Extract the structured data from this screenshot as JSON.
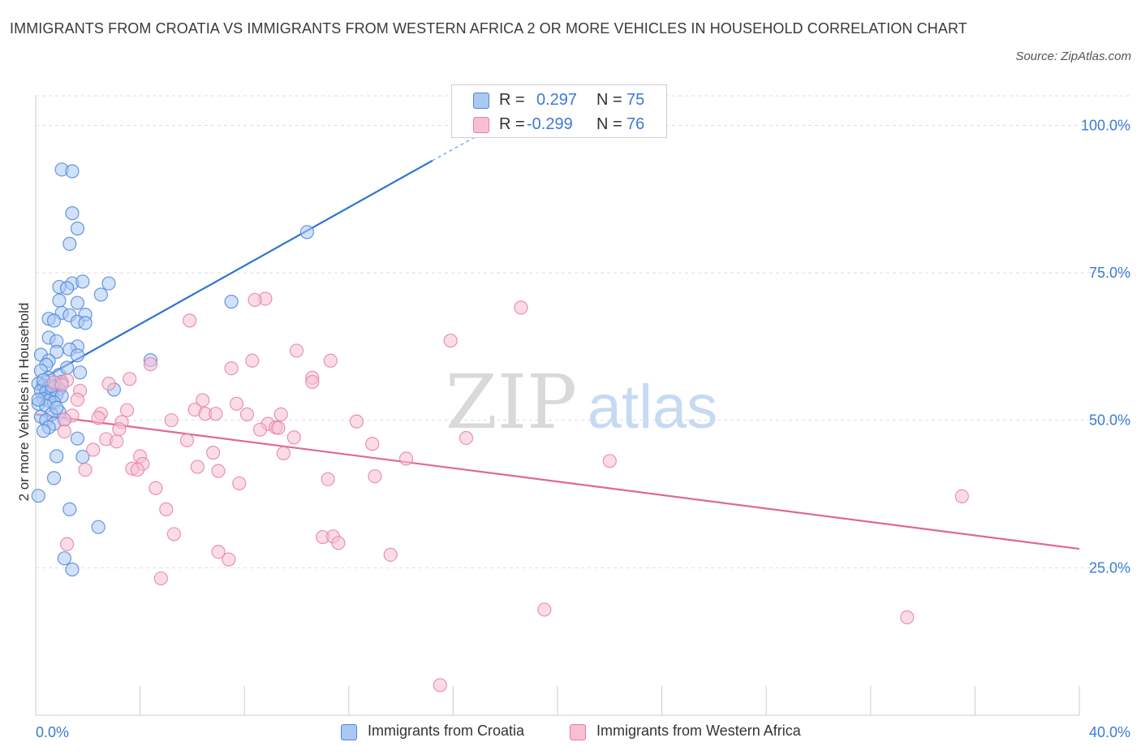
{
  "title": "IMMIGRANTS FROM CROATIA VS IMMIGRANTS FROM WESTERN AFRICA 2 OR MORE VEHICLES IN HOUSEHOLD CORRELATION CHART",
  "source": "Source: ZipAtlas.com",
  "watermark": {
    "zip": "ZIP",
    "atlas": "atlas"
  },
  "legend": {
    "r_label": "R =",
    "n_label": "N =",
    "croatia": {
      "r": "0.297",
      "n": "75"
    },
    "wafrica": {
      "r": "-0.299",
      "n": "76"
    }
  },
  "colors": {
    "croatia_fill": "#a9c8f2",
    "croatia_stroke": "#4f86d9",
    "croatia_line": "#2f74d0",
    "wafrica_fill": "#f6bfd2",
    "wafrica_stroke": "#e77fa4",
    "wafrica_line": "#e0679a",
    "axis_text": "#3a7bd5",
    "grid": "#dddddd"
  },
  "chart_data": {
    "type": "scatter",
    "xlabel": "",
    "ylabel": "2 or more Vehicles in Household",
    "xlim": [
      0,
      40
    ],
    "ylim": [
      0,
      105
    ],
    "x_tick_labels": [
      "0.0%",
      "40.0%"
    ],
    "y_ticks": [
      25,
      50,
      75,
      100
    ],
    "y_tick_labels": [
      "25.0%",
      "50.0%",
      "75.0%",
      "100.0%"
    ],
    "grid": true,
    "series": [
      {
        "name": "Immigrants from Croatia",
        "color": "#4f86d9",
        "points": [
          [
            1.0,
            92.5
          ],
          [
            1.4,
            92.2
          ],
          [
            1.4,
            85.1
          ],
          [
            1.6,
            82.5
          ],
          [
            1.3,
            79.9
          ],
          [
            10.4,
            81.9
          ],
          [
            0.9,
            72.6
          ],
          [
            1.4,
            73.2
          ],
          [
            1.8,
            73.5
          ],
          [
            2.8,
            73.2
          ],
          [
            1.2,
            72.4
          ],
          [
            2.5,
            71.3
          ],
          [
            7.5,
            70.1
          ],
          [
            0.9,
            70.3
          ],
          [
            1.6,
            69.9
          ],
          [
            1.0,
            68.2
          ],
          [
            1.3,
            67.8
          ],
          [
            1.9,
            67.9
          ],
          [
            0.5,
            67.2
          ],
          [
            0.7,
            66.9
          ],
          [
            1.6,
            66.7
          ],
          [
            1.9,
            66.5
          ],
          [
            0.5,
            64.0
          ],
          [
            0.8,
            63.4
          ],
          [
            1.6,
            62.5
          ],
          [
            1.3,
            62.0
          ],
          [
            0.8,
            61.6
          ],
          [
            1.6,
            61.0
          ],
          [
            0.2,
            61.1
          ],
          [
            0.5,
            60.1
          ],
          [
            4.4,
            60.2
          ],
          [
            0.4,
            59.4
          ],
          [
            0.2,
            58.4
          ],
          [
            1.7,
            58.1
          ],
          [
            0.9,
            57.7
          ],
          [
            0.5,
            57.2
          ],
          [
            1.0,
            56.5
          ],
          [
            0.1,
            56.2
          ],
          [
            0.3,
            55.9
          ],
          [
            0.5,
            55.6
          ],
          [
            0.7,
            55.5
          ],
          [
            0.9,
            55.3
          ],
          [
            3.0,
            55.2
          ],
          [
            0.2,
            55.0
          ],
          [
            0.4,
            54.8
          ],
          [
            0.6,
            54.6
          ],
          [
            0.8,
            54.3
          ],
          [
            1.0,
            54.1
          ],
          [
            0.3,
            53.6
          ],
          [
            0.5,
            53.3
          ],
          [
            0.7,
            53.0
          ],
          [
            0.1,
            52.8
          ],
          [
            0.4,
            52.4
          ],
          [
            0.9,
            51.4
          ],
          [
            0.6,
            51.0
          ],
          [
            0.2,
            50.6
          ],
          [
            0.4,
            50.0
          ],
          [
            1.1,
            50.1
          ],
          [
            0.7,
            49.4
          ],
          [
            0.5,
            48.8
          ],
          [
            0.3,
            48.2
          ],
          [
            1.6,
            46.9
          ],
          [
            0.8,
            43.9
          ],
          [
            1.8,
            43.8
          ],
          [
            0.7,
            40.2
          ],
          [
            0.1,
            37.2
          ],
          [
            1.3,
            34.9
          ],
          [
            2.4,
            31.9
          ],
          [
            1.1,
            26.6
          ],
          [
            1.4,
            24.7
          ],
          [
            0.6,
            55.8
          ],
          [
            0.3,
            56.8
          ],
          [
            1.2,
            58.9
          ],
          [
            0.8,
            52.1
          ],
          [
            0.1,
            53.5
          ]
        ]
      },
      {
        "name": "Immigrants from Western Africa",
        "color": "#e77fa4",
        "points": [
          [
            8.8,
            70.6
          ],
          [
            8.4,
            70.4
          ],
          [
            18.6,
            69.1
          ],
          [
            5.9,
            66.9
          ],
          [
            15.9,
            63.5
          ],
          [
            10.0,
            61.8
          ],
          [
            11.3,
            60.1
          ],
          [
            8.3,
            60.1
          ],
          [
            4.4,
            59.5
          ],
          [
            7.5,
            58.8
          ],
          [
            10.6,
            57.2
          ],
          [
            3.6,
            57.0
          ],
          [
            1.2,
            56.8
          ],
          [
            0.7,
            56.4
          ],
          [
            10.6,
            56.5
          ],
          [
            2.8,
            56.2
          ],
          [
            1.7,
            55.0
          ],
          [
            6.4,
            53.4
          ],
          [
            1.6,
            53.5
          ],
          [
            7.7,
            52.8
          ],
          [
            6.1,
            51.8
          ],
          [
            3.5,
            51.7
          ],
          [
            6.5,
            51.1
          ],
          [
            2.5,
            51.1
          ],
          [
            6.9,
            51.1
          ],
          [
            8.1,
            51.0
          ],
          [
            9.4,
            51.0
          ],
          [
            1.4,
            50.8
          ],
          [
            2.4,
            50.4
          ],
          [
            1.1,
            50.1
          ],
          [
            5.2,
            50.0
          ],
          [
            3.3,
            49.7
          ],
          [
            12.3,
            49.8
          ],
          [
            8.9,
            49.4
          ],
          [
            9.2,
            48.8
          ],
          [
            8.6,
            48.4
          ],
          [
            9.3,
            48.7
          ],
          [
            1.1,
            48.1
          ],
          [
            16.5,
            47.0
          ],
          [
            9.9,
            47.1
          ],
          [
            2.7,
            46.8
          ],
          [
            5.8,
            46.6
          ],
          [
            3.1,
            46.4
          ],
          [
            12.9,
            46.0
          ],
          [
            2.2,
            45.0
          ],
          [
            6.8,
            44.5
          ],
          [
            9.5,
            44.4
          ],
          [
            4.0,
            43.9
          ],
          [
            14.2,
            43.5
          ],
          [
            22.0,
            43.1
          ],
          [
            4.1,
            42.6
          ],
          [
            6.2,
            42.1
          ],
          [
            3.7,
            41.8
          ],
          [
            3.9,
            41.6
          ],
          [
            1.9,
            41.6
          ],
          [
            7.0,
            41.4
          ],
          [
            13.0,
            40.5
          ],
          [
            11.2,
            40.0
          ],
          [
            7.8,
            39.3
          ],
          [
            4.6,
            38.5
          ],
          [
            35.5,
            37.1
          ],
          [
            5.0,
            34.9
          ],
          [
            5.3,
            30.7
          ],
          [
            11.0,
            30.2
          ],
          [
            11.4,
            30.3
          ],
          [
            11.6,
            29.2
          ],
          [
            1.2,
            29.0
          ],
          [
            7.0,
            27.7
          ],
          [
            13.6,
            27.2
          ],
          [
            7.4,
            26.4
          ],
          [
            4.8,
            23.2
          ],
          [
            19.5,
            17.9
          ],
          [
            33.4,
            16.6
          ],
          [
            15.5,
            5.1
          ],
          [
            1.0,
            56.0
          ],
          [
            3.2,
            48.5
          ]
        ]
      }
    ],
    "trend_lines": [
      {
        "name": "Immigrants from Croatia",
        "x": [
          0.4,
          15.2
        ],
        "y": [
          57.4,
          94.0
        ],
        "dashed_to": [
          17.0,
          98.4
        ]
      },
      {
        "name": "Immigrants from Western Africa",
        "x": [
          0.0,
          40.0
        ],
        "y": [
          51.0,
          28.2
        ]
      }
    ]
  }
}
